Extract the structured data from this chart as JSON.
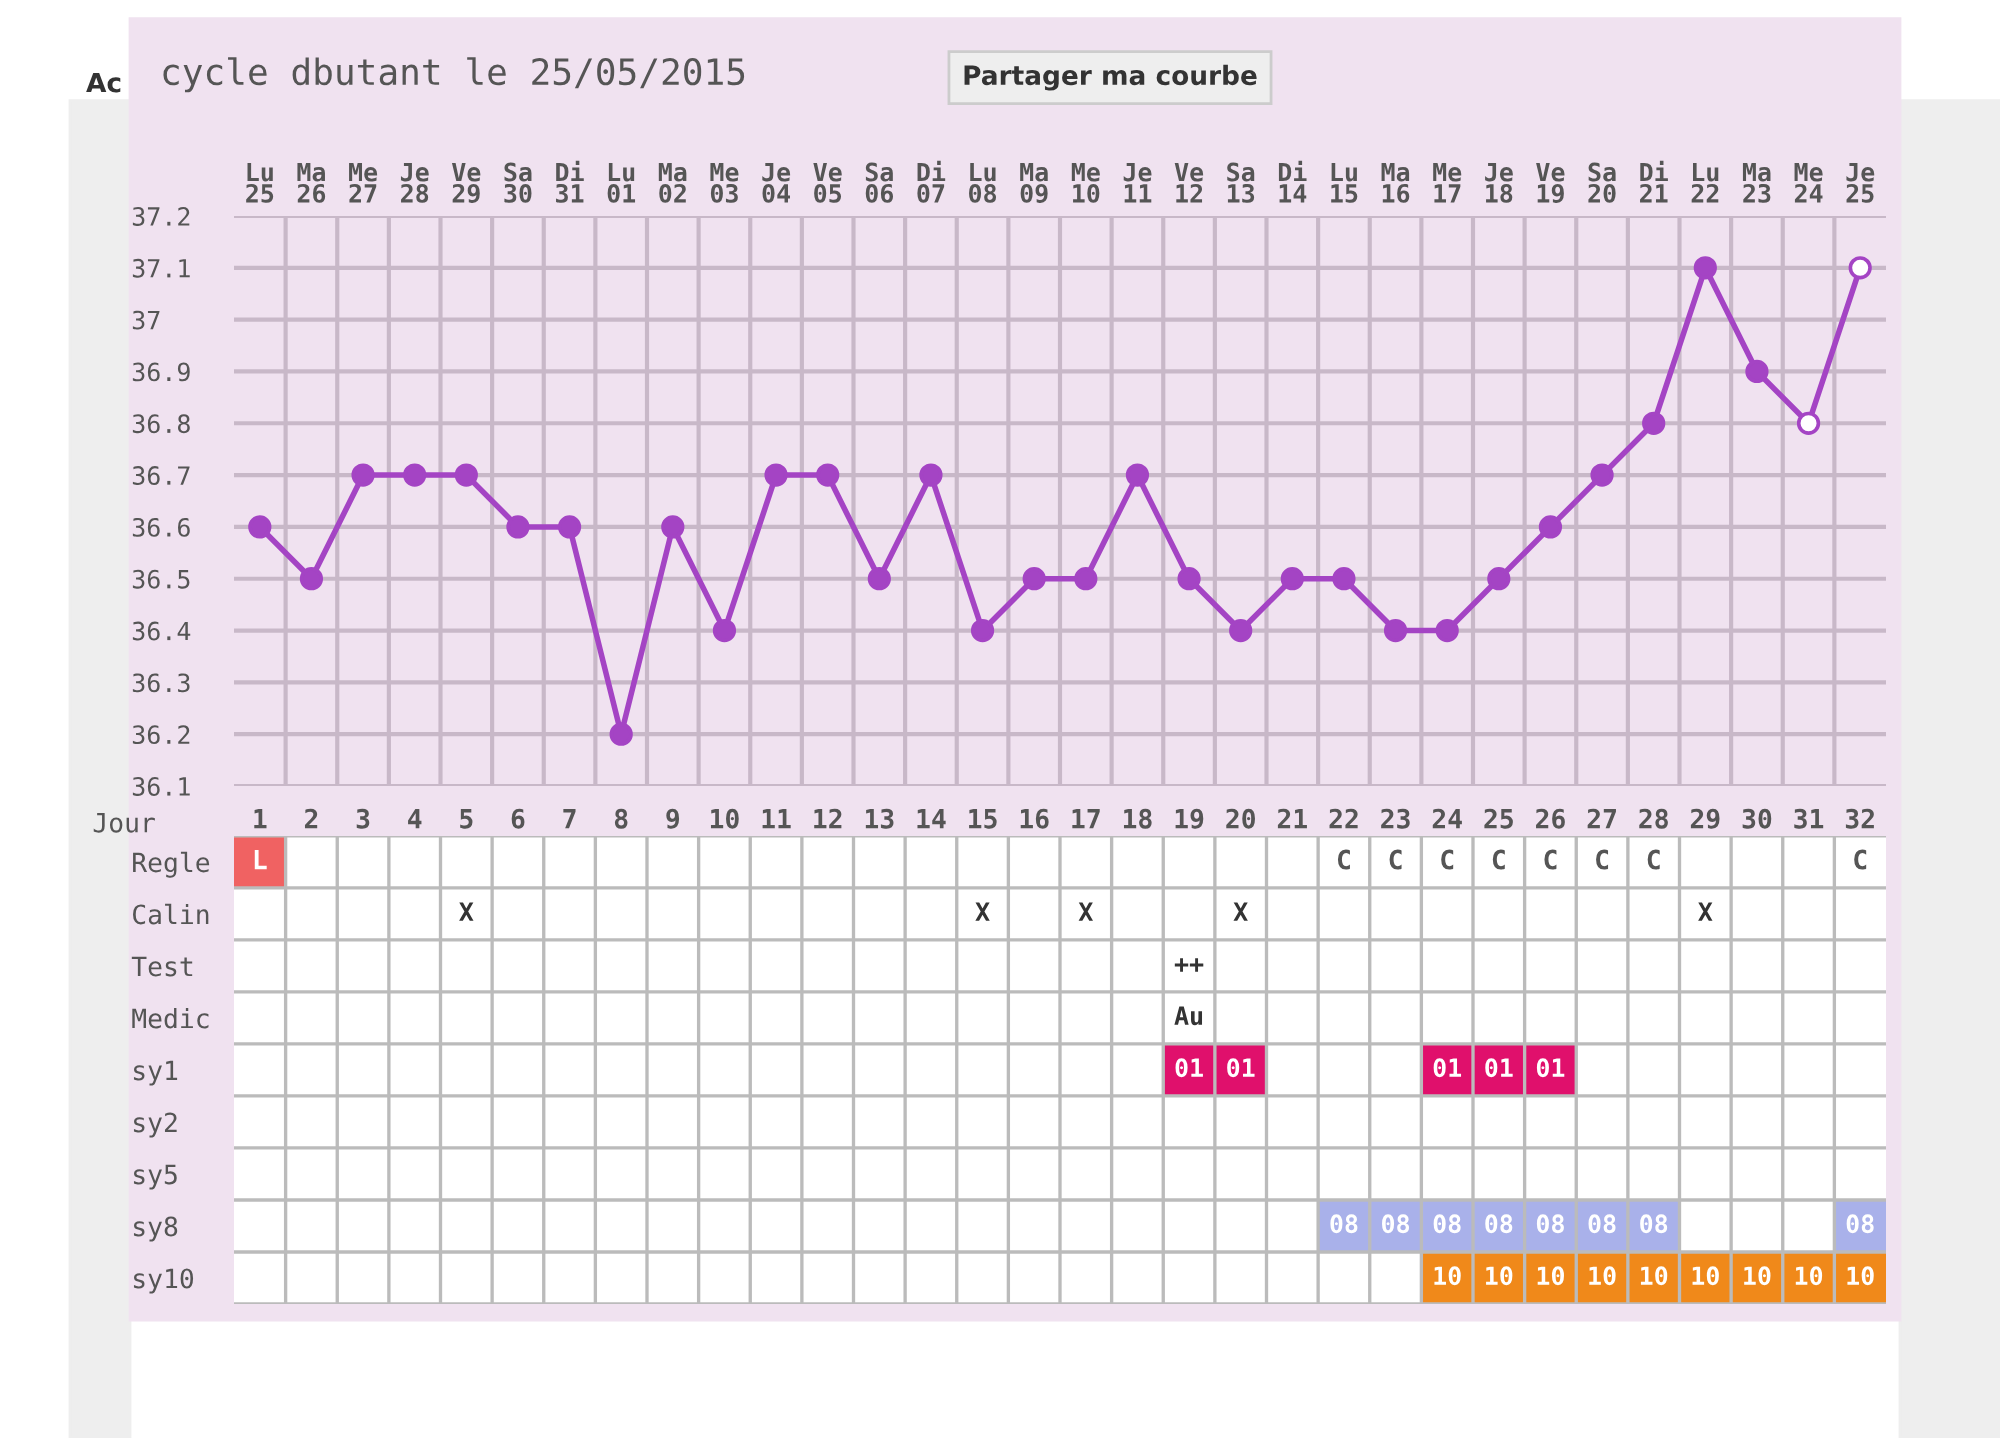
{
  "chart_data": [
    {
      "type": "line",
      "title": "cycle dbutant le 25/05/2015",
      "x2label": "Jour",
      "annotations": [
        "Partager ma courbe",
        "Ac"
      ],
      "categories": [
        "Lu\n25",
        "Ma\n26",
        "Me\n27",
        "Je\n28",
        "Ve\n29",
        "Sa\n30",
        "Di\n31",
        "Lu\n01",
        "Ma\n02",
        "Me\n03",
        "Je\n04",
        "Ve\n05",
        "Sa\n06",
        "Di\n07",
        "Lu\n08",
        "Ma\n09",
        "Me\n10",
        "Je\n11",
        "Ve\n12",
        "Sa\n13",
        "Di\n14",
        "Lu\n15",
        "Ma\n16",
        "Me\n17",
        "Je\n18",
        "Ve\n19",
        "Sa\n20",
        "Di\n21",
        "Lu\n22",
        "Ma\n23",
        "Me\n24",
        "Je\n25"
      ],
      "series": [
        {
          "type": "line",
          "color": "#a444c4",
          "values": [
            36.6,
            36.5,
            36.7,
            36.7,
            36.7,
            36.6,
            36.6,
            36.2,
            36.6,
            36.4,
            36.7,
            36.7,
            36.5,
            36.7,
            36.4,
            36.5,
            36.5,
            36.7,
            36.5,
            36.4,
            36.5,
            36.5,
            36.4,
            36.4,
            36.5,
            36.6,
            36.7,
            36.8,
            37.1,
            36.9,
            36.8,
            37.1
          ]
        },
        {
          "type": "scatter",
          "marker": "circle",
          "color": "#a444c4",
          "values": [
            36.6,
            36.5,
            36.7,
            36.7,
            36.7,
            36.6,
            36.6,
            36.2,
            36.6,
            36.4,
            36.7,
            36.7,
            36.5,
            36.7,
            36.4,
            36.5,
            36.5,
            36.7,
            36.5,
            36.4,
            36.5,
            36.5,
            36.4,
            36.4,
            36.5,
            36.6,
            36.7,
            36.8,
            37.1,
            36.9,
            null,
            null
          ]
        },
        {
          "type": "scatter",
          "marker": "circle",
          "color": "#ffffff",
          "values": [
            null,
            null,
            null,
            null,
            null,
            null,
            null,
            null,
            null,
            null,
            null,
            null,
            null,
            null,
            null,
            null,
            null,
            null,
            null,
            null,
            null,
            null,
            null,
            null,
            null,
            null,
            null,
            null,
            null,
            null,
            36.8,
            37.1
          ]
        }
      ],
      "x2lim": [
        0.5,
        32.5
      ],
      "x2ticks": [
        1,
        2,
        3,
        4,
        5,
        6,
        7,
        8,
        9,
        10,
        11,
        12,
        13,
        14,
        15,
        16,
        17,
        18,
        19,
        20,
        21,
        22,
        23,
        24,
        25,
        26,
        27,
        28,
        29,
        30,
        31,
        32
      ],
      "ylim": [
        36.1,
        37.2
      ],
      "yticks": [
        36.1,
        36.2,
        36.3,
        36.4,
        36.5,
        36.6,
        36.7,
        36.8,
        36.9,
        37,
        37.1,
        37.2
      ],
      "grid": true
    },
    {
      "type": "other",
      "y_categories": [
        "Regle",
        "Calin",
        "Test",
        "Medic",
        "sy1",
        "sy2",
        "sy5",
        "sy8",
        "sy10"
      ],
      "cell_labels": [
        [
          "L",
          null,
          null,
          null,
          null,
          null,
          null,
          null,
          null,
          null,
          null,
          null,
          null,
          null,
          null,
          null,
          null,
          null,
          null,
          null,
          null,
          "C",
          "C",
          "C",
          "C",
          "C",
          "C",
          "C",
          null,
          null,
          null,
          "C"
        ],
        [
          null,
          null,
          null,
          null,
          "X",
          null,
          null,
          null,
          null,
          null,
          null,
          null,
          null,
          null,
          "X",
          null,
          "X",
          null,
          null,
          "X",
          null,
          null,
          null,
          null,
          null,
          null,
          null,
          null,
          "X",
          null,
          null,
          null
        ],
        [
          null,
          null,
          null,
          null,
          null,
          null,
          null,
          null,
          null,
          null,
          null,
          null,
          null,
          null,
          null,
          null,
          null,
          null,
          "++",
          null,
          null,
          null,
          null,
          null,
          null,
          null,
          null,
          null,
          null,
          null,
          null,
          null
        ],
        [
          null,
          null,
          null,
          null,
          null,
          null,
          null,
          null,
          null,
          null,
          null,
          null,
          null,
          null,
          null,
          null,
          null,
          null,
          "Au",
          null,
          null,
          null,
          null,
          null,
          null,
          null,
          null,
          null,
          null,
          null,
          null,
          null
        ],
        [
          null,
          null,
          null,
          null,
          null,
          null,
          null,
          null,
          null,
          null,
          null,
          null,
          null,
          null,
          null,
          null,
          null,
          null,
          "01",
          "01",
          null,
          null,
          null,
          "01",
          "01",
          "01",
          null,
          null,
          null,
          null,
          null,
          null
        ],
        [
          null,
          null,
          null,
          null,
          null,
          null,
          null,
          null,
          null,
          null,
          null,
          null,
          null,
          null,
          null,
          null,
          null,
          null,
          null,
          null,
          null,
          null,
          null,
          null,
          null,
          null,
          null,
          null,
          null,
          null,
          null,
          null
        ],
        [
          null,
          null,
          null,
          null,
          null,
          null,
          null,
          null,
          null,
          null,
          null,
          null,
          null,
          null,
          null,
          null,
          null,
          null,
          null,
          null,
          null,
          null,
          null,
          null,
          null,
          null,
          null,
          null,
          null,
          null,
          null,
          null
        ],
        [
          null,
          null,
          null,
          null,
          null,
          null,
          null,
          null,
          null,
          null,
          null,
          null,
          null,
          null,
          null,
          null,
          null,
          null,
          null,
          null,
          null,
          "08",
          "08",
          "08",
          "08",
          "08",
          "08",
          "08",
          null,
          null,
          null,
          "08"
        ],
        [
          null,
          null,
          null,
          null,
          null,
          null,
          null,
          null,
          null,
          null,
          null,
          null,
          null,
          null,
          null,
          null,
          null,
          null,
          null,
          null,
          null,
          null,
          null,
          "10",
          "10",
          "10",
          "10",
          "10",
          "10",
          "10",
          "10",
          "10"
        ]
      ],
      "colors": [
        [
          "#f06262",
          null,
          null,
          null,
          null,
          null,
          null,
          null,
          null,
          null,
          null,
          null,
          null,
          null,
          null,
          null,
          null,
          null,
          null,
          null,
          null,
          null,
          null,
          null,
          null,
          null,
          null,
          null,
          null,
          null,
          null,
          null
        ],
        [
          null,
          null,
          null,
          null,
          null,
          null,
          null,
          null,
          null,
          null,
          null,
          null,
          null,
          null,
          null,
          null,
          null,
          null,
          null,
          null,
          null,
          null,
          null,
          null,
          null,
          null,
          null,
          null,
          null,
          null,
          null,
          null
        ],
        [
          null,
          null,
          null,
          null,
          null,
          null,
          null,
          null,
          null,
          null,
          null,
          null,
          null,
          null,
          null,
          null,
          null,
          null,
          null,
          null,
          null,
          null,
          null,
          null,
          null,
          null,
          null,
          null,
          null,
          null,
          null,
          null
        ],
        [
          null,
          null,
          null,
          null,
          null,
          null,
          null,
          null,
          null,
          null,
          null,
          null,
          null,
          null,
          null,
          null,
          null,
          null,
          null,
          null,
          null,
          null,
          null,
          null,
          null,
          null,
          null,
          null,
          null,
          null,
          null,
          null
        ],
        [
          null,
          null,
          null,
          null,
          null,
          null,
          null,
          null,
          null,
          null,
          null,
          null,
          null,
          null,
          null,
          null,
          null,
          null,
          "#e0106c",
          "#e0106c",
          null,
          null,
          null,
          "#e0106c",
          "#e0106c",
          "#e0106c",
          null,
          null,
          null,
          null,
          null,
          null
        ],
        [
          null,
          null,
          null,
          null,
          null,
          null,
          null,
          null,
          null,
          null,
          null,
          null,
          null,
          null,
          null,
          null,
          null,
          null,
          null,
          null,
          null,
          null,
          null,
          null,
          null,
          null,
          null,
          null,
          null,
          null,
          null,
          null
        ],
        [
          null,
          null,
          null,
          null,
          null,
          null,
          null,
          null,
          null,
          null,
          null,
          null,
          null,
          null,
          null,
          null,
          null,
          null,
          null,
          null,
          null,
          null,
          null,
          null,
          null,
          null,
          null,
          null,
          null,
          null,
          null,
          null
        ],
        [
          null,
          null,
          null,
          null,
          null,
          null,
          null,
          null,
          null,
          null,
          null,
          null,
          null,
          null,
          null,
          null,
          null,
          null,
          null,
          null,
          null,
          "#a9b1ea",
          "#a9b1ea",
          "#a9b1ea",
          "#a9b1ea",
          "#a9b1ea",
          "#a9b1ea",
          "#a9b1ea",
          null,
          null,
          null,
          "#a9b1ea"
        ],
        [
          null,
          null,
          null,
          null,
          null,
          null,
          null,
          null,
          null,
          null,
          null,
          null,
          null,
          null,
          null,
          null,
          null,
          null,
          null,
          null,
          null,
          null,
          null,
          "#f0891a",
          "#f0891a",
          "#f0891a",
          "#f0891a",
          "#f0891a",
          "#f0891a",
          "#f0891a",
          "#f0891a",
          "#f0891a"
        ]
      ]
    }
  ]
}
